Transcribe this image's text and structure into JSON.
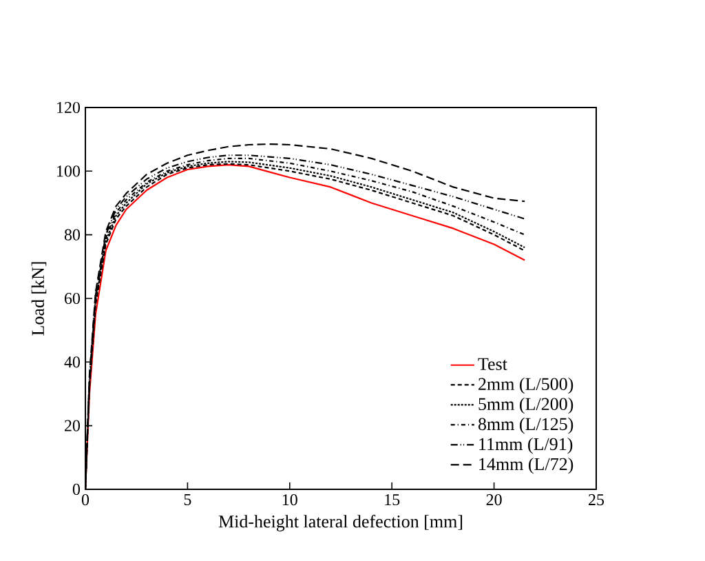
{
  "chart_data": {
    "type": "line",
    "xlabel": "Mid-height lateral defection [mm]",
    "ylabel": "Load [kN]",
    "xlim": [
      0,
      25
    ],
    "ylim": [
      0,
      120
    ],
    "xticks": [
      0,
      5,
      10,
      15,
      20,
      25
    ],
    "yticks": [
      0,
      20,
      40,
      60,
      80,
      100,
      120
    ],
    "grid": false,
    "legend": "bottom right",
    "series": [
      {
        "name": "Test",
        "color": "#ff0000",
        "line_style": "solid",
        "x": [
          0,
          0.2,
          0.5,
          1,
          1.5,
          2,
          3,
          4,
          5,
          6,
          7,
          8,
          10,
          12,
          14,
          16,
          18,
          20,
          21.5
        ],
        "values": [
          0,
          30,
          55,
          75,
          83,
          88,
          94,
          98,
          100.5,
          101.5,
          102,
          101.5,
          98,
          95,
          90,
          86,
          82,
          77,
          72
        ]
      },
      {
        "name": "2mm (L/500)",
        "color": "#000000",
        "line_style": "dashed",
        "x": [
          0,
          0.2,
          0.5,
          1,
          1.5,
          2,
          3,
          4,
          5,
          6,
          7,
          8,
          10,
          12,
          14,
          16,
          18,
          20,
          21.5
        ],
        "values": [
          0,
          32,
          58,
          77,
          85,
          89,
          95,
          99,
          101,
          102,
          102.3,
          102,
          100,
          97.5,
          94,
          90,
          86,
          80,
          75
        ]
      },
      {
        "name": "5mm (L/200)",
        "color": "#000000",
        "line_style": "dotted",
        "x": [
          0,
          0.2,
          0.5,
          1,
          1.5,
          2,
          3,
          4,
          5,
          6,
          7,
          8,
          10,
          12,
          14,
          16,
          18,
          20,
          21.5
        ],
        "values": [
          0,
          33,
          59,
          78,
          86,
          90,
          96,
          99.5,
          101.5,
          102.5,
          103,
          102.8,
          101,
          98.5,
          95,
          91,
          87,
          81,
          76
        ]
      },
      {
        "name": "8mm  (L/125)",
        "color": "#000000",
        "line_style": "dashdotted",
        "x": [
          0,
          0.2,
          0.5,
          1,
          1.5,
          2,
          3,
          4,
          5,
          6,
          7,
          8,
          10,
          12,
          14,
          16,
          18,
          20,
          21.5
        ],
        "values": [
          0,
          34,
          60,
          79,
          87,
          91,
          96.5,
          100,
          102,
          103.3,
          104,
          104,
          102.5,
          100,
          97,
          93.5,
          89,
          84,
          80
        ]
      },
      {
        "name": "11mm  (L/91)",
        "color": "#000000",
        "line_style": "dashdotdotted",
        "x": [
          0,
          0.2,
          0.5,
          1,
          1.5,
          2,
          3,
          4,
          5,
          6,
          7,
          8,
          10,
          12,
          14,
          16,
          18,
          20,
          21.5
        ],
        "values": [
          0,
          35,
          61,
          80,
          88,
          92,
          97.5,
          101,
          103,
          104.3,
          105,
          105,
          104,
          102,
          99,
          95.5,
          92,
          88,
          85
        ]
      },
      {
        "name": "14mm  (L/72)",
        "color": "#000000",
        "line_style": "loosely dashed",
        "x": [
          0,
          0.2,
          0.5,
          1,
          1.5,
          2,
          3,
          4,
          5,
          6,
          7,
          8,
          9,
          10,
          12,
          14,
          16,
          18,
          20,
          21.5
        ],
        "values": [
          0,
          36,
          62,
          81,
          89,
          93,
          99,
          102.5,
          105,
          106.5,
          107.7,
          108.3,
          108.5,
          108.3,
          107,
          104,
          100,
          95,
          91.5,
          90.5
        ]
      }
    ]
  }
}
